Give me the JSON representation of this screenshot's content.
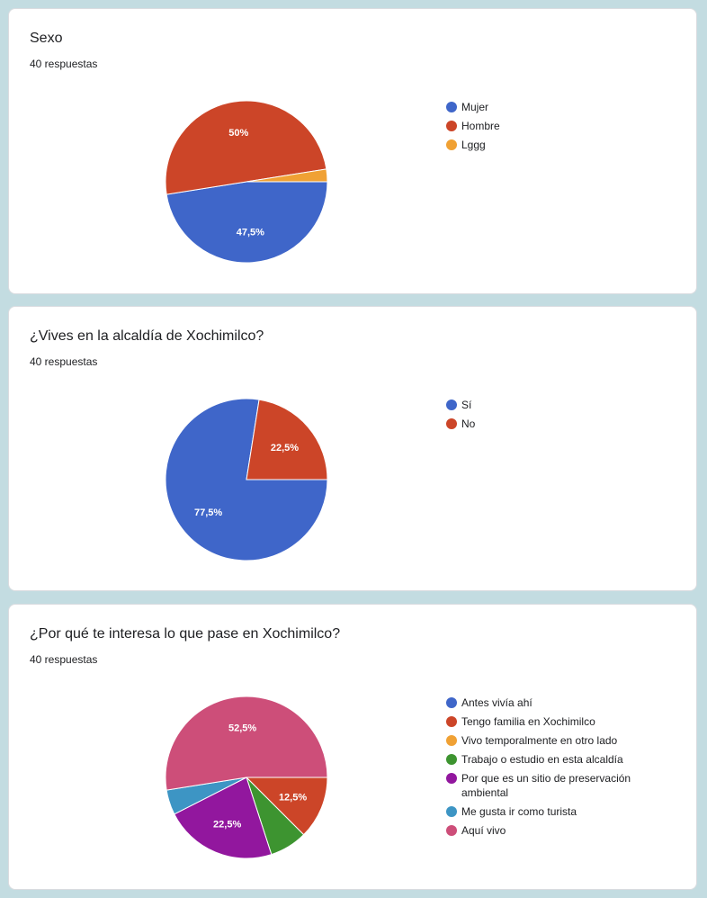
{
  "chart_data": [
    {
      "type": "pie",
      "title": "Sexo",
      "subtitle": "40 respuestas",
      "categories": [
        "Mujer",
        "Hombre",
        "Lggg"
      ],
      "values": [
        47.5,
        50,
        2.5
      ],
      "colors": [
        "#3f66c9",
        "#cc4528",
        "#f0a134"
      ],
      "slice_labels": [
        "47,5%",
        "50%",
        ""
      ],
      "legend_position": "right"
    },
    {
      "type": "pie",
      "title": "¿Vives en la alcaldía de Xochimilco?",
      "subtitle": "40 respuestas",
      "categories": [
        "Sí",
        "No"
      ],
      "values": [
        77.5,
        22.5
      ],
      "colors": [
        "#3f66c9",
        "#cc4528"
      ],
      "slice_labels": [
        "77,5%",
        "22,5%"
      ],
      "legend_position": "right"
    },
    {
      "type": "pie",
      "title": "¿Por qué te interesa lo que pase en Xochimilco?",
      "subtitle": "40 respuestas",
      "categories": [
        "Antes vivía ahí",
        "Tengo familia en Xochimilco",
        "Vivo temporalmente en otro lado",
        "Trabajo o estudio en esta alcaldía",
        "Por que es un sitio de preservación ambiental",
        "Me gusta ir como turista",
        "Aquí vivo"
      ],
      "values": [
        0,
        12.5,
        0,
        7.5,
        22.5,
        5,
        52.5
      ],
      "colors": [
        "#3f66c9",
        "#cc4528",
        "#f0a134",
        "#3d9430",
        "#92179e",
        "#3d95c4",
        "#cd4e79"
      ],
      "slice_labels": [
        "",
        "12,5%",
        "",
        "",
        "22,5%",
        "",
        "52,5%"
      ],
      "legend_position": "right"
    }
  ]
}
